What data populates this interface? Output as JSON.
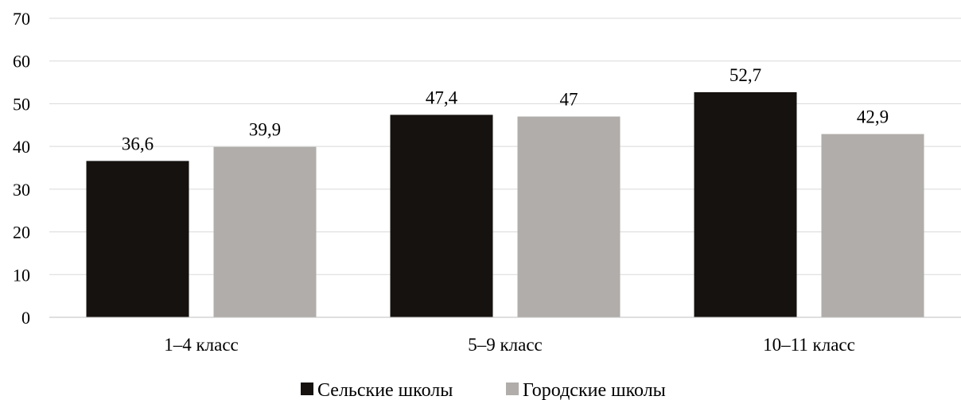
{
  "chart_data": {
    "type": "bar",
    "categories": [
      "1–4 класс",
      "5–9 класс",
      "10–11 класс"
    ],
    "series": [
      {
        "name": "Сельские школы",
        "values": [
          36.6,
          47.4,
          52.7
        ],
        "labels": [
          "36,6",
          "47,4",
          "52,7"
        ],
        "color": "#15120f"
      },
      {
        "name": "Городские школы",
        "values": [
          39.9,
          47,
          42.9
        ],
        "labels": [
          "39,9",
          "47",
          "42,9"
        ],
        "color": "#b0adaa"
      }
    ],
    "title": "",
    "xlabel": "",
    "ylabel": "",
    "ylim": [
      0,
      70
    ],
    "yticks": [
      0,
      10,
      20,
      30,
      40,
      50,
      60,
      70
    ],
    "ytick_labels": [
      "0",
      "10",
      "20",
      "30",
      "40",
      "50",
      "60",
      "70"
    ],
    "grid": true,
    "legend_position": "bottom-center"
  }
}
